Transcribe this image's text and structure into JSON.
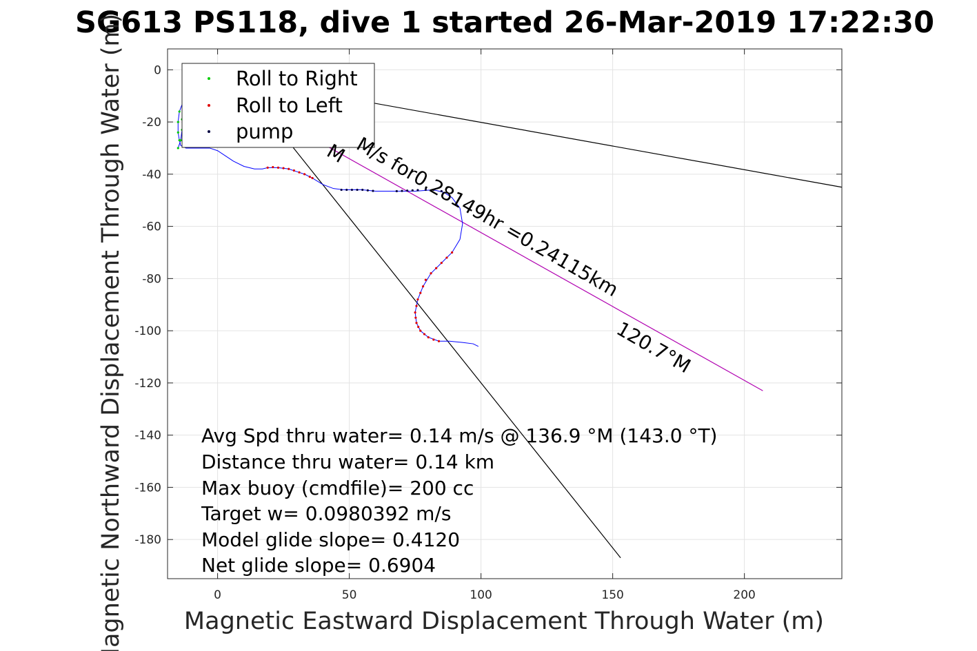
{
  "chart_data": {
    "type": "scatter",
    "title": "SG613 PS118, dive 1 started 26-Mar-2019 17:22:30",
    "xlabel": "Magnetic Eastward Displacement Through Water (m)",
    "ylabel": "Magnetic Northward Displacement Through Water (m)",
    "xlim": [
      -19,
      237
    ],
    "ylim": [
      -195,
      8
    ],
    "xticks": [
      0,
      50,
      100,
      150,
      200
    ],
    "yticks": [
      0,
      -20,
      -40,
      -60,
      -80,
      -100,
      -120,
      -140,
      -160,
      -180
    ],
    "grid": true,
    "legend_position": "top-left",
    "legend": [
      {
        "label": "Roll to Right",
        "color": "#00cc00"
      },
      {
        "label": "Roll to Left",
        "color": "#e00000"
      },
      {
        "label": "pump",
        "color": "#000040"
      }
    ],
    "track": [
      [
        -15,
        -30
      ],
      [
        -14,
        -27
      ],
      [
        -13.5,
        -23
      ],
      [
        -13.5,
        -19
      ],
      [
        -13,
        -15
      ],
      [
        -12,
        -12
      ],
      [
        -11,
        -9
      ],
      [
        -9,
        -7
      ],
      [
        -8,
        -7
      ],
      [
        -9,
        -7
      ],
      [
        -11,
        -9
      ],
      [
        -13,
        -12
      ],
      [
        -14.5,
        -16
      ],
      [
        -15,
        -20
      ],
      [
        -15,
        -24
      ],
      [
        -14.5,
        -27
      ],
      [
        -14,
        -29
      ],
      [
        -12,
        -30
      ],
      [
        -8,
        -30
      ],
      [
        -3,
        -30
      ],
      [
        0,
        -31
      ],
      [
        3,
        -33
      ],
      [
        6,
        -35
      ],
      [
        10,
        -37
      ],
      [
        14,
        -38
      ],
      [
        17,
        -38
      ],
      [
        19,
        -37.5
      ],
      [
        23,
        -37.5
      ],
      [
        27,
        -38
      ],
      [
        30,
        -39
      ],
      [
        33,
        -40
      ],
      [
        36,
        -41.5
      ],
      [
        40,
        -44
      ],
      [
        44,
        -45.5
      ],
      [
        48,
        -46
      ],
      [
        55,
        -46
      ],
      [
        60,
        -46.5
      ],
      [
        68,
        -46.5
      ],
      [
        75,
        -46.5
      ],
      [
        82,
        -46
      ],
      [
        86,
        -47
      ],
      [
        89,
        -49
      ],
      [
        92,
        -53
      ],
      [
        93,
        -59
      ],
      [
        92,
        -65
      ],
      [
        89,
        -70
      ],
      [
        85,
        -74
      ],
      [
        81,
        -78
      ],
      [
        78,
        -83
      ],
      [
        76,
        -88
      ],
      [
        75,
        -93
      ],
      [
        75.5,
        -97
      ],
      [
        77,
        -100
      ],
      [
        80,
        -102.5
      ],
      [
        84,
        -104
      ],
      [
        88,
        -104
      ],
      [
        93,
        -104.5
      ],
      [
        97,
        -105
      ],
      [
        99,
        -106
      ]
    ],
    "roll_right_points": [
      [
        -15,
        -30
      ],
      [
        -14,
        -27
      ],
      [
        -13.5,
        -23
      ],
      [
        -13.5,
        -19
      ],
      [
        -13,
        -15
      ],
      [
        -12,
        -12
      ],
      [
        -11,
        -9
      ],
      [
        -9,
        -7
      ],
      [
        -11,
        -9
      ],
      [
        -13,
        -12
      ],
      [
        -14.5,
        -16
      ],
      [
        -15,
        -20
      ],
      [
        -15,
        -24
      ],
      [
        -14.5,
        -27
      ]
    ],
    "roll_left_points": [
      [
        19,
        -37.5
      ],
      [
        21,
        -37.3
      ],
      [
        23,
        -37.5
      ],
      [
        25,
        -37.7
      ],
      [
        27,
        -38
      ],
      [
        29,
        -38.6
      ],
      [
        31,
        -39.3
      ],
      [
        33,
        -40
      ],
      [
        35,
        -41
      ],
      [
        36,
        -41.5
      ],
      [
        78,
        -83
      ],
      [
        77,
        -85.5
      ],
      [
        76,
        -88
      ],
      [
        75.5,
        -90.5
      ],
      [
        75,
        -93
      ],
      [
        75.2,
        -95
      ],
      [
        75.5,
        -97
      ],
      [
        76.2,
        -98.5
      ],
      [
        77,
        -100
      ],
      [
        78.5,
        -101.3
      ],
      [
        80,
        -102.5
      ],
      [
        82,
        -103.4
      ],
      [
        84,
        -104
      ],
      [
        79,
        -80.5
      ],
      [
        81,
        -78
      ],
      [
        83,
        -76
      ],
      [
        85,
        -74
      ],
      [
        87,
        -72
      ],
      [
        89,
        -70
      ]
    ],
    "pump_points": [
      [
        47,
        -46
      ],
      [
        49,
        -46
      ],
      [
        51,
        -46
      ],
      [
        53,
        -46
      ],
      [
        55,
        -46
      ],
      [
        57,
        -46.2
      ],
      [
        59,
        -46.4
      ],
      [
        68,
        -46.5
      ],
      [
        70,
        -46.4
      ],
      [
        72,
        -46.3
      ],
      [
        74,
        -46.2
      ],
      [
        76,
        -46.1
      ],
      [
        79,
        -46
      ],
      [
        82,
        -46
      ],
      [
        85,
        -46.5
      ]
    ],
    "lines": [
      {
        "name": "current",
        "color": "#000000",
        "x": [
          44,
          237
        ],
        "y": [
          -10,
          -45
        ]
      },
      {
        "name": "steep",
        "color": "#000000",
        "x": [
          17,
          153
        ],
        "y": [
          -15,
          -187
        ]
      },
      {
        "name": "heading",
        "color": "#b000b0",
        "x": [
          34,
          207
        ],
        "y": [
          -25,
          -123
        ]
      }
    ]
  },
  "annotations": {
    "heading_line_text": "M/s for0.28149hr =0.24115km",
    "heading_partial": "M",
    "bearing_text": "120.7°M"
  },
  "stats": [
    "Avg Spd thru water=  0.14 m/s @ 136.9 °M (143.0 °T)",
    "Distance thru water=  0.14 km",
    "Max buoy (cmdfile)= 200 cc",
    "Target w= 0.0980392 m/s",
    "Model glide slope= 0.4120",
    "Net glide slope= 0.6904"
  ]
}
